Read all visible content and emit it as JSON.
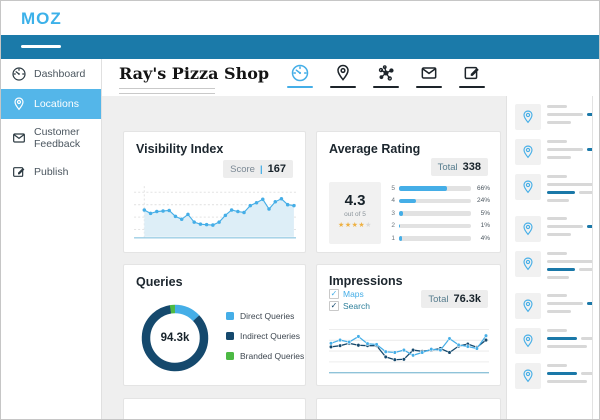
{
  "brand": {
    "logo": "MOZ"
  },
  "colors": {
    "accent_light_blue": "#45aee7",
    "accent_dark_navy": "#15496d",
    "accent_green": "#4cb944",
    "brand_bar_blue": "#1b7aa9",
    "star_gold": "#eeb143",
    "star_empty": "#d8d8d8",
    "skeleton_blue": "#1a78a8",
    "skeleton_gray": "#d8d8d8"
  },
  "sidebar": {
    "items": [
      {
        "label": "Dashboard",
        "icon": "gauge",
        "name": "sidebar-item-dashboard",
        "active": false
      },
      {
        "label": "Locations",
        "icon": "pin",
        "name": "sidebar-item-locations",
        "active": true
      },
      {
        "label": "Customer Feedback",
        "icon": "envelope",
        "name": "sidebar-item-customer-feedback",
        "active": false
      },
      {
        "label": "Publish",
        "icon": "edit",
        "name": "sidebar-item-publish",
        "active": false
      }
    ]
  },
  "header": {
    "title": "Ray's Pizza Shop",
    "active_icon_index": 0,
    "icons": [
      {
        "name": "nav-overview-icon",
        "icon": "gauge"
      },
      {
        "name": "nav-locations-icon",
        "icon": "pin"
      },
      {
        "name": "nav-network-icon",
        "icon": "network"
      },
      {
        "name": "nav-messages-icon",
        "icon": "envelope"
      },
      {
        "name": "nav-publish-icon",
        "icon": "edit"
      }
    ]
  },
  "panels": {
    "visibility": {
      "title": "Visibility Index",
      "badge_label": "Score",
      "badge_value": "167"
    },
    "rating": {
      "title": "Average Rating",
      "badge_label": "Total",
      "badge_value": "338",
      "score": "4.3",
      "out_of": "out of 5",
      "stars_filled": 4,
      "stars_total": 5,
      "distribution": [
        {
          "stars": "5",
          "percent": 66
        },
        {
          "stars": "4",
          "percent": 24
        },
        {
          "stars": "3",
          "percent": 5
        },
        {
          "stars": "2",
          "percent": 1
        },
        {
          "stars": "1",
          "percent": 4
        }
      ]
    },
    "queries": {
      "title": "Queries",
      "total": "94.3k",
      "legend": [
        {
          "label": "Direct Queries",
          "color": "#45aee7"
        },
        {
          "label": "Indirect Queries",
          "color": "#15496d"
        },
        {
          "label": "Branded Queries",
          "color": "#4cb944"
        }
      ]
    },
    "impressions": {
      "title": "Impressions",
      "badge_label": "Total",
      "badge_value": "76.3k",
      "checkboxes": [
        {
          "label": "Maps",
          "checked": true,
          "color": "#45aee7"
        },
        {
          "label": "Search",
          "checked": true,
          "color": "#2e7f9a",
          "check_color": "#15496d"
        }
      ]
    }
  },
  "right_panel": {
    "items": [
      {
        "variant": "a"
      },
      {
        "variant": "a"
      },
      {
        "variant": "b"
      },
      {
        "variant": "a"
      },
      {
        "variant": "b"
      },
      {
        "variant": "a"
      },
      {
        "variant": "c"
      },
      {
        "variant": "c"
      }
    ],
    "variants": {
      "a": [
        [
          [
            "gray",
            20
          ]
        ],
        [
          [
            "gray",
            36
          ],
          [
            "blue",
            20
          ]
        ],
        [
          [
            "gray",
            24
          ]
        ]
      ],
      "b": [
        [
          [
            "gray",
            20
          ]
        ],
        [
          [
            "gray",
            52
          ]
        ],
        [
          [
            "blue",
            28
          ],
          [
            "gray",
            18
          ]
        ],
        [
          [
            "gray",
            22
          ]
        ]
      ],
      "c": [
        [
          [
            "gray",
            20
          ]
        ],
        [
          [
            "blue",
            30
          ],
          [
            "gray",
            14
          ]
        ],
        [
          [
            "gray",
            40
          ]
        ]
      ]
    }
  },
  "chart_data": [
    {
      "type": "area",
      "name": "visibility-index",
      "title": "Visibility Index",
      "color": "#45aee7",
      "fill": "#ddeef7",
      "ylim": [
        0,
        100
      ],
      "values": [
        55,
        48,
        52,
        53,
        54,
        42,
        36,
        46,
        30,
        26,
        25,
        24,
        30,
        44,
        55,
        52,
        50,
        64,
        70,
        77,
        57,
        72,
        78,
        66,
        64
      ]
    },
    {
      "type": "line",
      "name": "impressions",
      "title": "Impressions",
      "ylim": [
        0,
        100
      ],
      "series": [
        {
          "name": "Maps",
          "color": "#45aee7",
          "values": [
            60,
            68,
            63,
            77,
            59,
            57,
            39,
            37,
            43,
            30,
            37,
            45,
            43,
            72,
            56,
            52,
            47,
            79
          ]
        },
        {
          "name": "Search",
          "color": "#15496d",
          "values": [
            51,
            54,
            60,
            55,
            54,
            54,
            26,
            19,
            20,
            43,
            40,
            43,
            47,
            37,
            53,
            58,
            50,
            68
          ]
        }
      ]
    },
    {
      "type": "pie",
      "name": "queries-donut",
      "title": "Queries",
      "center_label": "94.3k",
      "slices": [
        {
          "label": "Direct Queries",
          "color": "#45aee7",
          "percent": 13
        },
        {
          "label": "Indirect Queries",
          "color": "#15496d",
          "percent": 84.5
        },
        {
          "label": "Branded Queries",
          "color": "#4cb944",
          "percent": 2.5
        }
      ]
    },
    {
      "type": "bar",
      "name": "rating-distribution",
      "title": "Average Rating distribution",
      "categories": [
        "5",
        "4",
        "3",
        "2",
        "1"
      ],
      "values": [
        66,
        24,
        5,
        1,
        4
      ],
      "unit": "%"
    }
  ]
}
